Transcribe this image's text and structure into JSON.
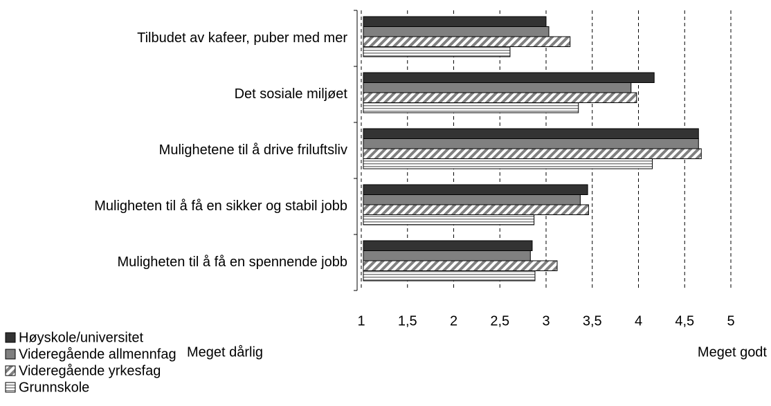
{
  "chart_data": {
    "type": "hbar",
    "categories": [
      "Tilbudet av kafeer, puber med mer",
      "Det sosiale miljøet",
      "Mulighetene til å drive friluftsliv",
      "Muligheten til å få en sikker og stabil jobb",
      "Muligheten til å få en spennende jobb"
    ],
    "series": [
      {
        "name": "Høyskole/universitet",
        "color": "#333333",
        "pattern": "solid",
        "values": [
          3.0,
          4.17,
          4.65,
          3.45,
          2.85
        ]
      },
      {
        "name": "Videregående allmennfag",
        "color": "#808080",
        "pattern": "solid",
        "values": [
          3.03,
          3.92,
          4.65,
          3.37,
          2.83
        ]
      },
      {
        "name": "Videregående yrkesfag",
        "color": "#808080",
        "pattern": "diagonal",
        "values": [
          3.26,
          3.98,
          4.68,
          3.46,
          3.12
        ]
      },
      {
        "name": "Grunnskole",
        "color": "#808080",
        "pattern": "horizontal",
        "values": [
          2.61,
          3.35,
          4.15,
          2.87,
          2.88
        ]
      }
    ],
    "xlim": [
      1,
      5
    ],
    "xticks": [
      1,
      {
        "value": 1.5,
        "label": "1,5"
      },
      2,
      {
        "value": 2.5,
        "label": "2,5"
      },
      3,
      {
        "value": 3.5,
        "label": "3,5"
      },
      4,
      {
        "value": 4.5,
        "label": "4,5"
      },
      5
    ],
    "annotations": [
      "Meget dårlig",
      "Meget godt"
    ],
    "grid": true,
    "legend": "bottom-left"
  }
}
